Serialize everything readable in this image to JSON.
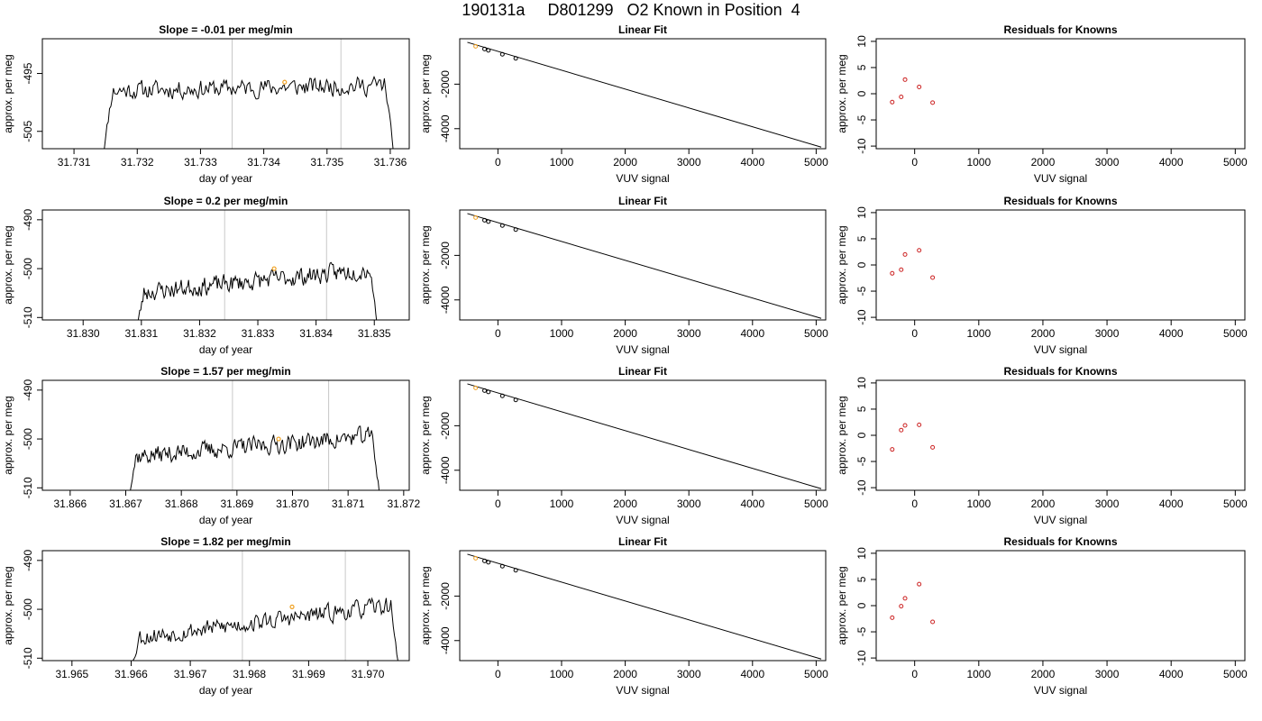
{
  "figure": {
    "title": "190131a     D801299   O2 Known in Position  4"
  },
  "chart_data": [
    {
      "type": "line",
      "title": "Slope =  -0.01  per meg/min",
      "xlabel": "day of year",
      "ylabel": "approx. per meg",
      "xlim": [
        31.7305,
        31.7363
      ],
      "ylim": [
        -508,
        -489
      ],
      "xticks": [
        "31.731",
        "31.732",
        "31.733",
        "31.734",
        "31.735",
        "31.736"
      ],
      "yticks": [
        "-505",
        "-495"
      ],
      "vlines": [
        31.7335,
        31.73522
      ],
      "start_x": 31.73142,
      "end_x": 31.73609,
      "level": -497.5,
      "trend": 1.0,
      "noise": 2.2,
      "seed": 11,
      "marker": {
        "x": 31.73433,
        "y": -496.5,
        "color": "#f0a020"
      },
      "grid": false
    },
    {
      "type": "scatter",
      "title": "Linear Fit",
      "xlabel": "VUV signal",
      "ylabel": "approx. per meg",
      "xlim": [
        -600,
        5150
      ],
      "ylim": [
        -4900,
        40
      ],
      "xticks": [
        "0",
        "1000",
        "2000",
        "3000",
        "4000",
        "5000"
      ],
      "yticks": [
        "-4000",
        "-2000"
      ],
      "fit_line": {
        "x": [
          -480,
          5080
        ],
        "y": [
          -120,
          -4830
        ]
      },
      "points": {
        "x": [
          -350,
          -210,
          -150,
          70,
          280
        ],
        "y": [
          -300,
          -420,
          -480,
          -660,
          -840
        ]
      },
      "highlight_index": 0,
      "highlight_color": "#f0a020",
      "grid": false
    },
    {
      "type": "scatter",
      "title": "Residuals for Knowns",
      "xlabel": "VUV signal",
      "ylabel": "approx. per meg",
      "xlim": [
        -600,
        5150
      ],
      "ylim": [
        -10.5,
        10.5
      ],
      "xticks": [
        "0",
        "1000",
        "2000",
        "3000",
        "4000",
        "5000"
      ],
      "yticks": [
        "-10",
        "-5",
        "0",
        "5",
        "10"
      ],
      "points": {
        "x": [
          -350,
          -210,
          -150,
          70,
          280
        ],
        "y": [
          -1.6,
          -0.6,
          2.7,
          1.3,
          -1.7
        ]
      },
      "point_color": "#cc2222",
      "grid": false
    },
    {
      "type": "line",
      "title": "Slope =  0.2  per meg/min",
      "xlabel": "day of year",
      "ylabel": "approx. per meg",
      "xlim": [
        31.8293,
        31.8356
      ],
      "ylim": [
        -510.5,
        -488
      ],
      "xticks": [
        "31.830",
        "31.831",
        "31.832",
        "31.833",
        "31.834",
        "31.835"
      ],
      "yticks": [
        "-510",
        "-500",
        "-490"
      ],
      "vlines": [
        31.83243,
        31.83418
      ],
      "start_x": 31.83088,
      "end_x": 31.83508,
      "level": -502.5,
      "trend": 5.0,
      "noise": 2.6,
      "seed": 23,
      "marker": {
        "x": 31.83328,
        "y": -500,
        "color": "#f0a020"
      },
      "grid": false
    },
    {
      "type": "scatter",
      "title": "Linear Fit",
      "xlabel": "VUV signal",
      "ylabel": "approx. per meg",
      "xlim": [
        -600,
        5150
      ],
      "ylim": [
        -4900,
        40
      ],
      "xticks": [
        "0",
        "1000",
        "2000",
        "3000",
        "4000",
        "5000"
      ],
      "yticks": [
        "-4000",
        "-2000"
      ],
      "fit_line": {
        "x": [
          -480,
          5080
        ],
        "y": [
          -120,
          -4830
        ]
      },
      "points": {
        "x": [
          -350,
          -210,
          -150,
          70,
          280
        ],
        "y": [
          -300,
          -420,
          -480,
          -660,
          -840
        ]
      },
      "highlight_index": 0,
      "highlight_color": "#f0a020",
      "grid": false
    },
    {
      "type": "scatter",
      "title": "Residuals for Knowns",
      "xlabel": "VUV signal",
      "ylabel": "approx. per meg",
      "xlim": [
        -600,
        5150
      ],
      "ylim": [
        -10.5,
        10.5
      ],
      "xticks": [
        "0",
        "1000",
        "2000",
        "3000",
        "4000",
        "5000"
      ],
      "yticks": [
        "-10",
        "-5",
        "0",
        "5",
        "10"
      ],
      "points": {
        "x": [
          -350,
          -210,
          -150,
          70,
          280
        ],
        "y": [
          -1.6,
          -0.9,
          2.0,
          2.8,
          -2.4
        ]
      },
      "point_color": "#cc2222",
      "grid": false
    },
    {
      "type": "line",
      "title": "Slope =  1.57  per meg/min",
      "xlabel": "day of year",
      "ylabel": "approx. per meg",
      "xlim": [
        31.8655,
        31.8721
      ],
      "ylim": [
        -510.5,
        -488
      ],
      "xticks": [
        "31.866",
        "31.867",
        "31.868",
        "31.869",
        "31.870",
        "31.871",
        "31.872"
      ],
      "yticks": [
        "-510",
        "-500",
        "-490"
      ],
      "vlines": [
        31.86892,
        31.87065
      ],
      "start_x": 31.867,
      "end_x": 31.8716,
      "level": -501.5,
      "trend": 4.5,
      "noise": 2.6,
      "seed": 37,
      "marker": {
        "x": 31.86975,
        "y": -500,
        "color": "#f0a020"
      },
      "grid": false
    },
    {
      "type": "scatter",
      "title": "Linear Fit",
      "xlabel": "VUV signal",
      "ylabel": "approx. per meg",
      "xlim": [
        -600,
        5150
      ],
      "ylim": [
        -4900,
        40
      ],
      "xticks": [
        "0",
        "1000",
        "2000",
        "3000",
        "4000",
        "5000"
      ],
      "yticks": [
        "-4000",
        "-2000"
      ],
      "fit_line": {
        "x": [
          -480,
          5080
        ],
        "y": [
          -120,
          -4830
        ]
      },
      "points": {
        "x": [
          -350,
          -210,
          -150,
          70,
          280
        ],
        "y": [
          -300,
          -420,
          -480,
          -660,
          -840
        ]
      },
      "highlight_index": 0,
      "highlight_color": "#f0a020",
      "grid": false
    },
    {
      "type": "scatter",
      "title": "Residuals for Knowns",
      "xlabel": "VUV signal",
      "ylabel": "approx. per meg",
      "xlim": [
        -600,
        5150
      ],
      "ylim": [
        -10.5,
        10.5
      ],
      "xticks": [
        "0",
        "1000",
        "2000",
        "3000",
        "4000",
        "5000"
      ],
      "yticks": [
        "-10",
        "-5",
        "0",
        "5",
        "10"
      ],
      "points": {
        "x": [
          -350,
          -210,
          -150,
          70,
          280
        ],
        "y": [
          -2.7,
          1.0,
          1.9,
          2.0,
          -2.3
        ]
      },
      "point_color": "#cc2222",
      "grid": false
    },
    {
      "type": "line",
      "title": "Slope =  1.82  per meg/min",
      "xlabel": "day of year",
      "ylabel": "approx. per meg",
      "xlim": [
        31.9645,
        31.9707
      ],
      "ylim": [
        -510.5,
        -488
      ],
      "xticks": [
        "31.965",
        "31.966",
        "31.967",
        "31.968",
        "31.969",
        "31.970"
      ],
      "yticks": [
        "-510",
        "-500",
        "-490"
      ],
      "vlines": [
        31.96788,
        31.96962
      ],
      "start_x": 31.96595,
      "end_x": 31.97055,
      "level": -502.5,
      "trend": 7.0,
      "noise": 2.5,
      "seed": 53,
      "marker": {
        "x": 31.96872,
        "y": -499.5,
        "color": "#f0a020"
      },
      "grid": false
    },
    {
      "type": "scatter",
      "title": "Linear Fit",
      "xlabel": "VUV signal",
      "ylabel": "approx. per meg",
      "xlim": [
        -600,
        5150
      ],
      "ylim": [
        -4900,
        40
      ],
      "xticks": [
        "0",
        "1000",
        "2000",
        "3000",
        "4000",
        "5000"
      ],
      "yticks": [
        "-4000",
        "-2000"
      ],
      "fit_line": {
        "x": [
          -480,
          5080
        ],
        "y": [
          -120,
          -4830
        ]
      },
      "points": {
        "x": [
          -350,
          -210,
          -150,
          70,
          280
        ],
        "y": [
          -300,
          -420,
          -480,
          -660,
          -840
        ]
      },
      "highlight_index": 0,
      "highlight_color": "#f0a020",
      "grid": false
    },
    {
      "type": "scatter",
      "title": "Residuals for Knowns",
      "xlabel": "VUV signal",
      "ylabel": "approx. per meg",
      "xlim": [
        -600,
        5150
      ],
      "ylim": [
        -10.5,
        10.5
      ],
      "xticks": [
        "0",
        "1000",
        "2000",
        "3000",
        "4000",
        "5000"
      ],
      "yticks": [
        "-10",
        "-5",
        "0",
        "5",
        "10"
      ],
      "points": {
        "x": [
          -350,
          -210,
          -150,
          70,
          280
        ],
        "y": [
          -2.3,
          -0.1,
          1.4,
          4.1,
          -3.1
        ]
      },
      "point_color": "#cc2222",
      "grid": false
    }
  ]
}
